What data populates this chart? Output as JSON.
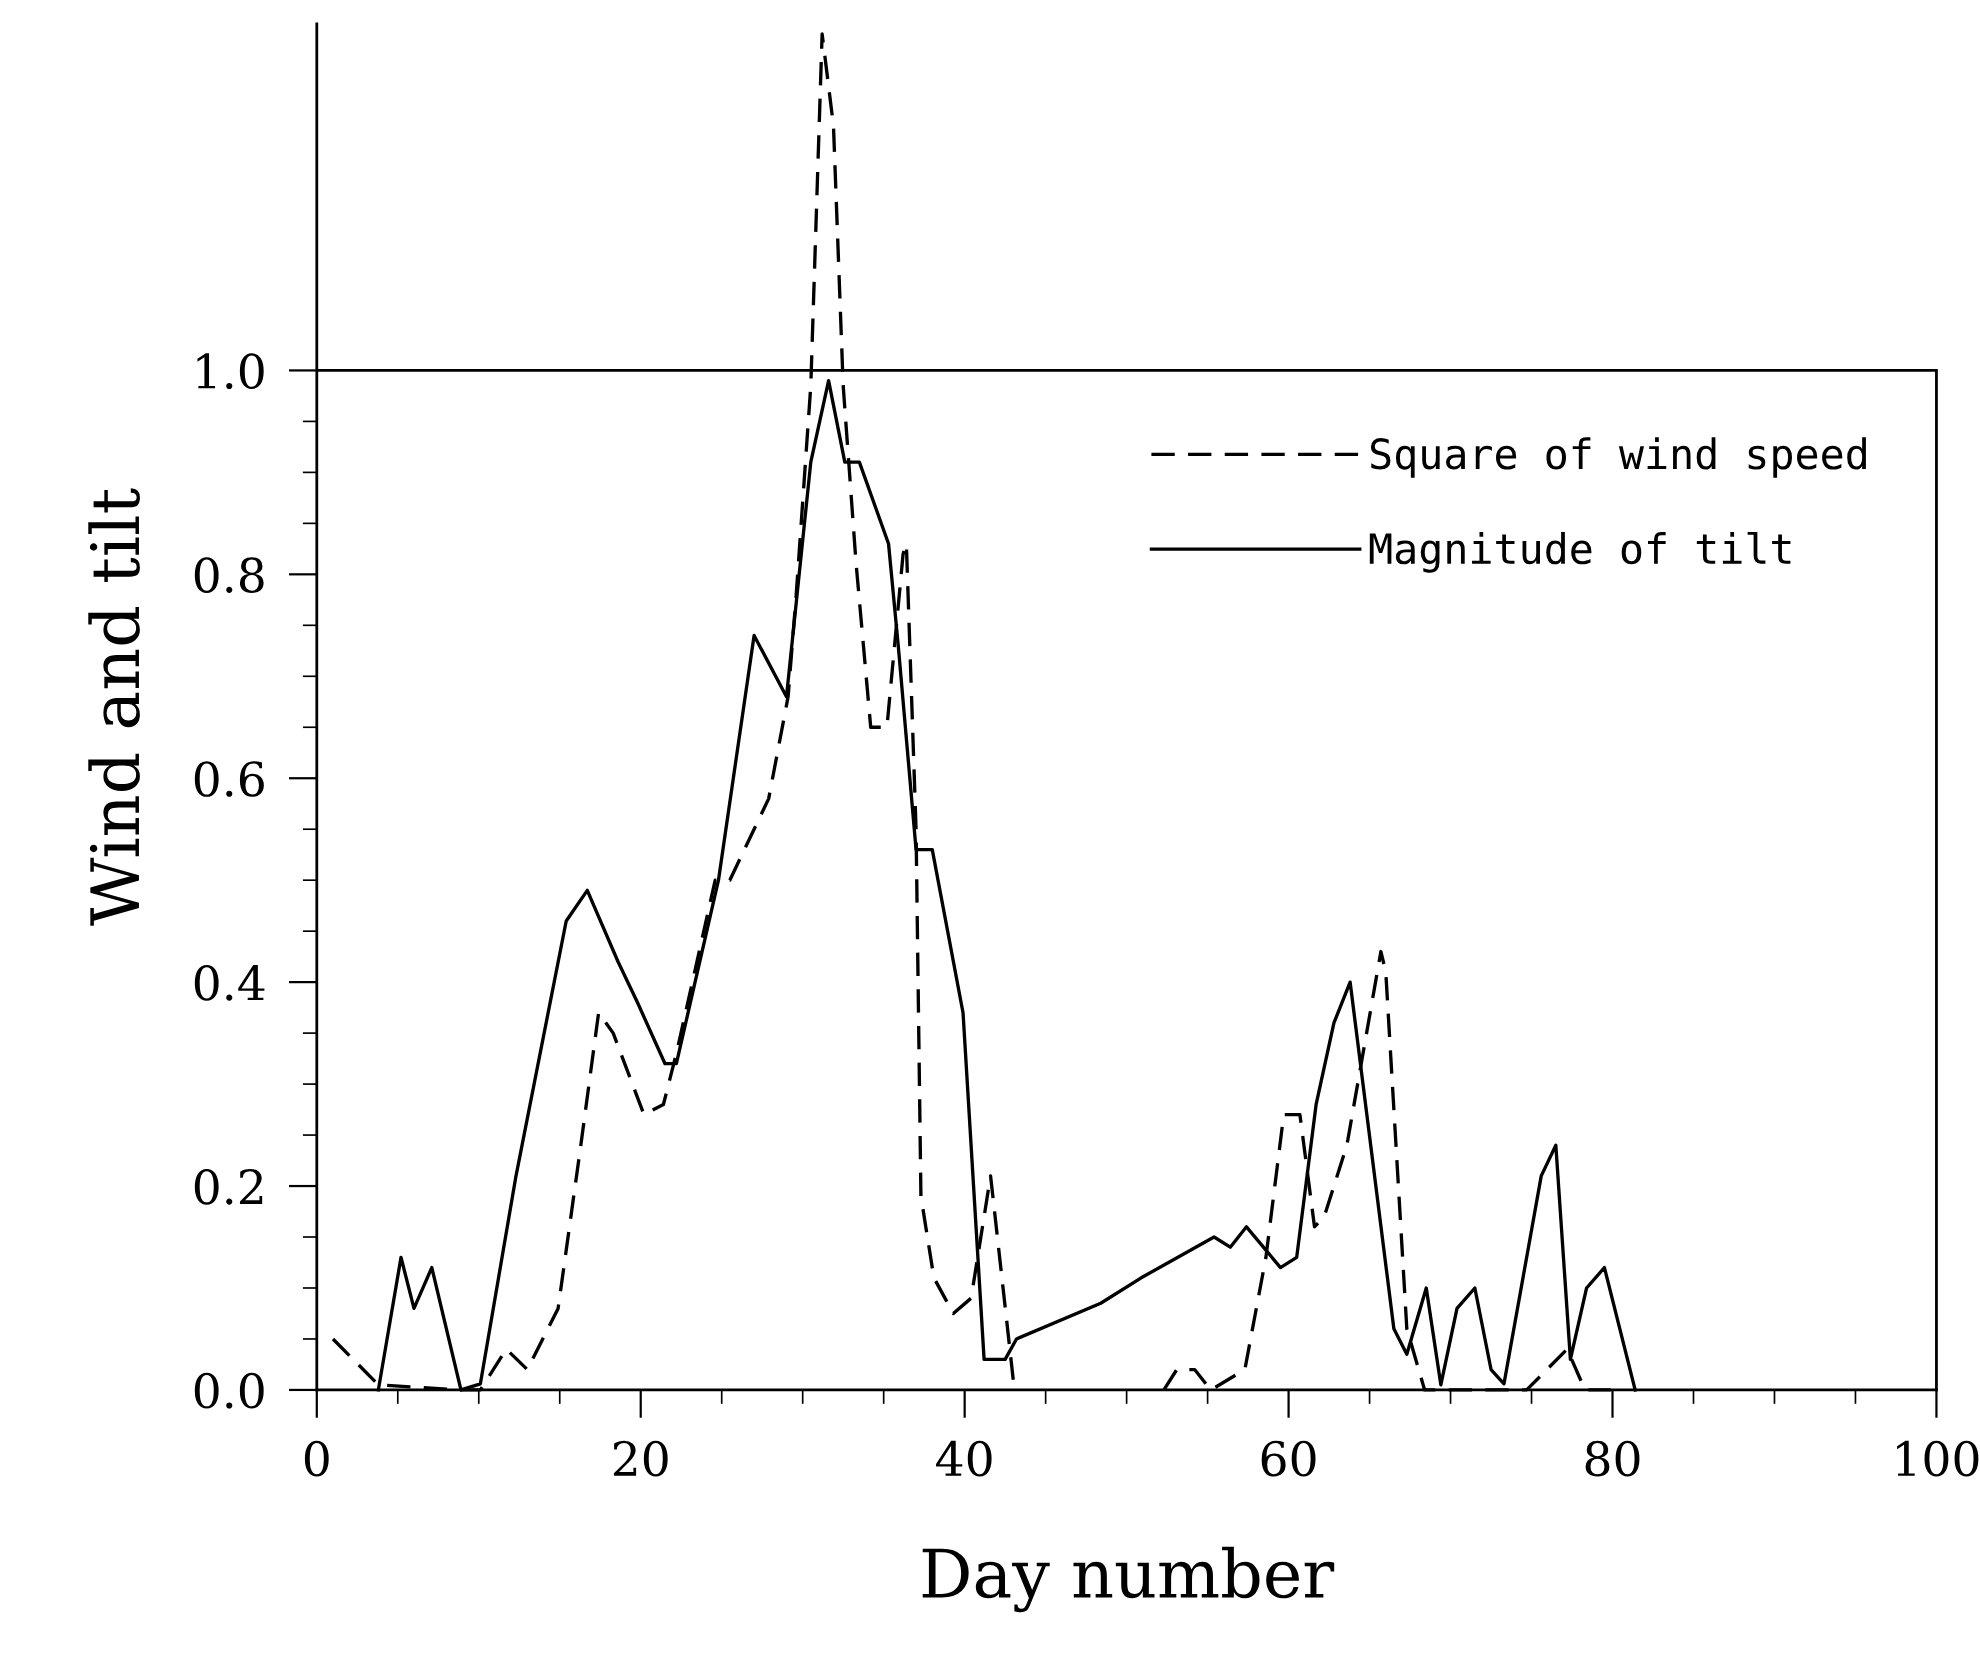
{
  "chart_data": {
    "type": "line",
    "xlabel": "Day number",
    "ylabel": "Wind and tilt",
    "xlim": [
      0,
      100
    ],
    "xticks": [
      0,
      20,
      40,
      60,
      80,
      100
    ],
    "ylim": [
      0,
      1.34
    ],
    "ref_lines": [
      {
        "axis": "y",
        "value": 1.0,
        "color": "#000000",
        "line_style": "solid"
      }
    ],
    "yticks": [
      {
        "value": 0,
        "label": "0.0"
      },
      0.2,
      0.4,
      0.6,
      0.8,
      {
        "value": 1.0,
        "label": "1.0"
      }
    ],
    "grid": false,
    "legend": "top right",
    "marker": "none",
    "series": [
      {
        "name": "Square of wind speed",
        "color": "#000000",
        "line_style": "dashed",
        "x": [
          1.0,
          3.8,
          8.9,
          10.1,
          11.7,
          13.0,
          14.9,
          16.3,
          17.4,
          18.3,
          20.2,
          21.4,
          22.2,
          24.6,
          25.5,
          27.9,
          29.1,
          29.6,
          30.5,
          31.2,
          31.9,
          32.5,
          33.3,
          34.2,
          35.2,
          36.2,
          36.4,
          37.0,
          37.3,
          38.1,
          39.3,
          40.4,
          41.6,
          43.0,
          null,
          52.3,
          53.1,
          54.2,
          55.2,
          57.3,
          58.6,
          59.7,
          60.7,
          61.6,
          62.2,
          63.6,
          65.7,
          66.0,
          67.3,
          68.4,
          74.7,
          77.2,
          78.3,
          79.9
        ],
        "values": [
          0.05,
          0.005,
          0.0,
          0.0,
          0.04,
          0.02,
          0.08,
          0.24,
          0.37,
          0.35,
          0.27,
          0.28,
          0.33,
          0.5,
          0.5,
          0.58,
          0.68,
          0.78,
          0.985,
          1.33,
          1.24,
          0.985,
          0.81,
          0.65,
          0.65,
          0.82,
          0.83,
          0.55,
          0.19,
          0.11,
          0.075,
          0.09,
          0.21,
          0.01,
          null,
          0.0,
          0.02,
          0.02,
          0.0,
          0.02,
          0.13,
          0.27,
          0.27,
          0.16,
          0.17,
          0.24,
          0.43,
          0.41,
          0.06,
          0.0,
          0.0,
          0.04,
          0.0,
          0.0
        ]
      },
      {
        "name": "Magnitude of tilt",
        "color": "#000000",
        "line_style": "solid",
        "x": [
          3.8,
          5.2,
          6.0,
          7.1,
          8.9,
          10.1,
          12.3,
          15.4,
          16.7,
          18.6,
          19.8,
          21.5,
          22.2,
          24.8,
          27.0,
          29.0,
          30.5,
          31.6,
          32.6,
          33.5,
          35.3,
          35.9,
          37.0,
          38.0,
          39.9,
          41.2,
          42.5,
          43.2,
          48.4,
          50.9,
          55.4,
          56.4,
          57.4,
          59.5,
          60.5,
          61.7,
          62.8,
          63.8,
          66.5,
          67.3,
          68.5,
          69.4,
          70.4,
          71.5,
          72.5,
          73.3,
          75.6,
          76.5,
          77.4,
          78.4,
          79.5,
          81.4
        ],
        "values": [
          0.0,
          0.13,
          0.08,
          0.12,
          0.0,
          0.006,
          0.21,
          0.46,
          0.49,
          0.42,
          0.38,
          0.32,
          0.32,
          0.5,
          0.74,
          0.68,
          0.91,
          0.99,
          0.91,
          0.91,
          0.83,
          0.73,
          0.53,
          0.53,
          0.37,
          0.03,
          0.03,
          0.05,
          0.085,
          0.11,
          0.15,
          0.14,
          0.16,
          0.12,
          0.13,
          0.28,
          0.36,
          0.4,
          0.06,
          0.035,
          0.1,
          0.005,
          0.08,
          0.1,
          0.02,
          0.006,
          0.21,
          0.24,
          0.03,
          0.1,
          0.12,
          0.0
        ]
      }
    ]
  }
}
